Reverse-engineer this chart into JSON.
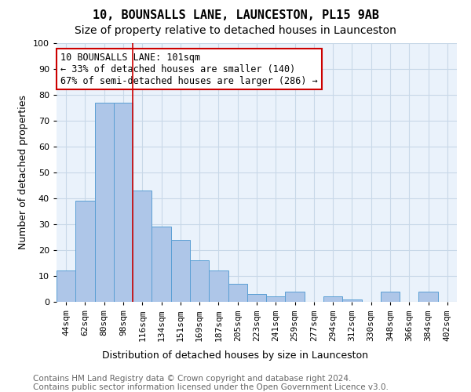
{
  "title": "10, BOUNSALLS LANE, LAUNCESTON, PL15 9AB",
  "subtitle": "Size of property relative to detached houses in Launceston",
  "xlabel": "Distribution of detached houses by size in Launceston",
  "ylabel": "Number of detached properties",
  "footnote1": "Contains HM Land Registry data © Crown copyright and database right 2024.",
  "footnote2": "Contains public sector information licensed under the Open Government Licence v3.0.",
  "categories": [
    "44sqm",
    "62sqm",
    "80sqm",
    "98sqm",
    "116sqm",
    "134sqm",
    "151sqm",
    "169sqm",
    "187sqm",
    "205sqm",
    "223sqm",
    "241sqm",
    "259sqm",
    "277sqm",
    "294sqm",
    "312sqm",
    "330sqm",
    "348sqm",
    "366sqm",
    "384sqm",
    "402sqm"
  ],
  "values": [
    12,
    39,
    77,
    77,
    43,
    29,
    24,
    16,
    12,
    7,
    3,
    2,
    4,
    0,
    2,
    1,
    0,
    4,
    0,
    4,
    0
  ],
  "bar_color": "#aec6e8",
  "bar_edge_color": "#5a9fd4",
  "grid_color": "#c8d8e8",
  "background_color": "#eaf2fb",
  "vline_color": "#cc0000",
  "vline_x": 3.5,
  "annotation_text": "10 BOUNSALLS LANE: 101sqm\n← 33% of detached houses are smaller (140)\n67% of semi-detached houses are larger (286) →",
  "annotation_box_edge_color": "#cc0000",
  "ylim": [
    0,
    100
  ],
  "title_fontsize": 11,
  "subtitle_fontsize": 10,
  "xlabel_fontsize": 9,
  "ylabel_fontsize": 9,
  "tick_fontsize": 8,
  "annotation_fontsize": 8.5,
  "footnote_fontsize": 7.5
}
